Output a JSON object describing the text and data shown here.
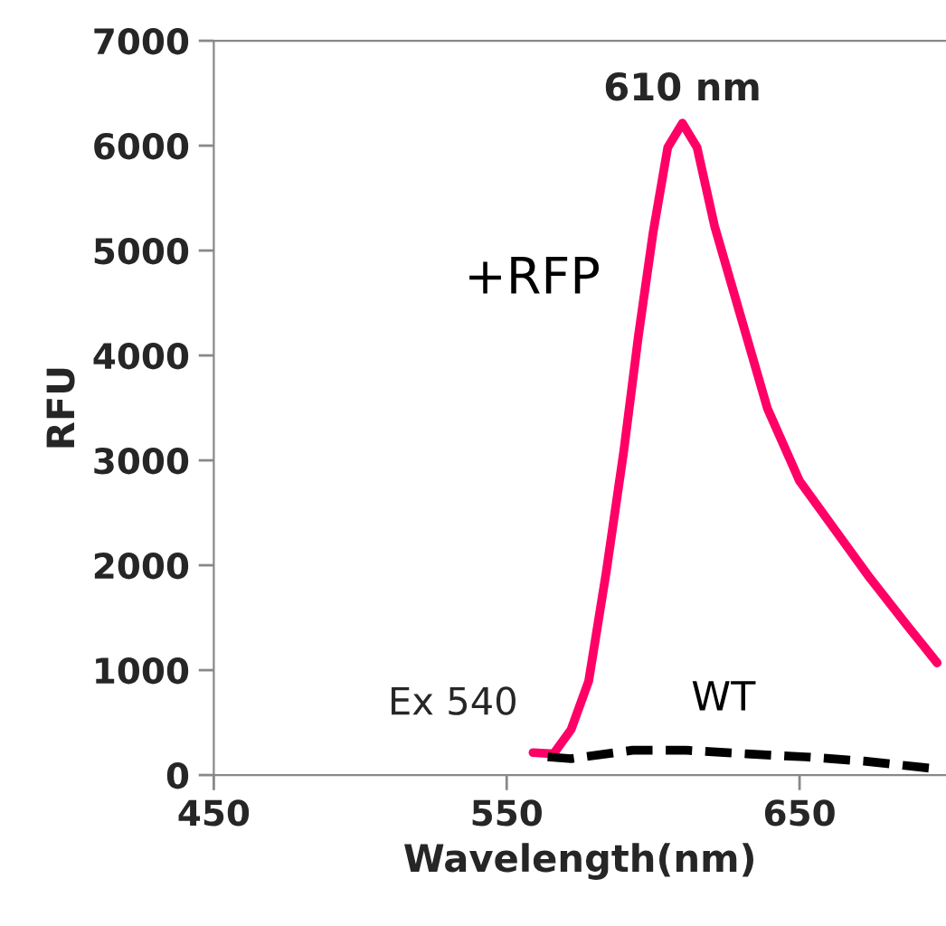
{
  "chart_data": {
    "type": "line",
    "xlabel": "Wavelength(nm)",
    "ylabel": "RFU",
    "xlim": [
      450,
      700
    ],
    "xticks": [
      450,
      550,
      650
    ],
    "ylim": [
      0,
      7000
    ],
    "yticks": [
      0,
      1000,
      2000,
      3000,
      4000,
      5000,
      6000,
      7000
    ],
    "grid": false,
    "legend": false,
    "series": [
      {
        "name": "+RFP",
        "color": "#ff0066",
        "line_style": "solid",
        "x": [
          559,
          566,
          572,
          578,
          584,
          590,
          595,
          600,
          605,
          610,
          615,
          621,
          630,
          639,
          650,
          662,
          674,
          687,
          697
        ],
        "values": [
          214,
          202,
          434,
          896,
          1936,
          3092,
          4191,
          5173,
          5983,
          6214,
          5983,
          5231,
          4364,
          3497,
          2803,
          2341,
          1879,
          1416,
          1069
        ]
      },
      {
        "name": "WT",
        "color": "#000000",
        "line_style": "dashed",
        "x": [
          564,
          572,
          593,
          611,
          632,
          652,
          672,
          697
        ],
        "values": [
          173,
          156,
          237,
          237,
          202,
          173,
          133,
          58
        ]
      }
    ],
    "annotations": [
      {
        "text": "610 nm",
        "x": 610,
        "y": 6214
      },
      "Ex 540"
    ]
  }
}
